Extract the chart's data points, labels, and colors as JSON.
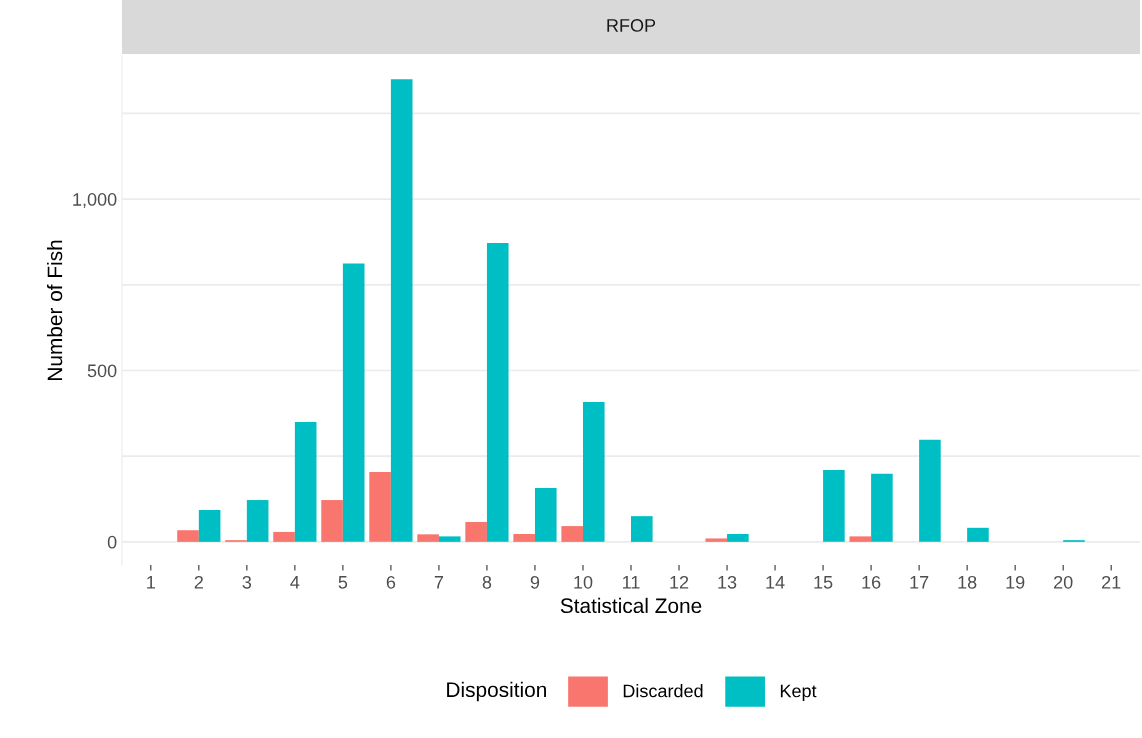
{
  "chart_data": {
    "type": "bar",
    "title": "RFOP",
    "xlabel": "Statistical Zone",
    "ylabel": "Number of Fish",
    "legend_title": "Disposition",
    "categories": [
      "1",
      "2",
      "3",
      "4",
      "5",
      "6",
      "7",
      "8",
      "9",
      "10",
      "11",
      "12",
      "13",
      "14",
      "15",
      "16",
      "17",
      "18",
      "19",
      "20",
      "21"
    ],
    "series": [
      {
        "name": "Discarded",
        "color": "#f8766d",
        "values": [
          null,
          34,
          5,
          29,
          122,
          204,
          22,
          58,
          23,
          46,
          null,
          null,
          10,
          null,
          null,
          16,
          null,
          null,
          null,
          null,
          null
        ]
      },
      {
        "name": "Kept",
        "color": "#00bfc4",
        "values": [
          null,
          93,
          122,
          350,
          812,
          1350,
          16,
          872,
          157,
          408,
          75,
          null,
          23,
          null,
          210,
          199,
          298,
          41,
          null,
          5,
          null
        ]
      }
    ],
    "ylim": [
      -67.5,
      1417.5
    ],
    "yticks": [
      0,
      {
        "value": 250,
        "label": null
      },
      500,
      {
        "value": 750,
        "label": null
      },
      {
        "value": 1000,
        "label": "1,000"
      },
      {
        "value": 1250,
        "label": null
      }
    ],
    "grid": "y",
    "legend": "bottom"
  }
}
